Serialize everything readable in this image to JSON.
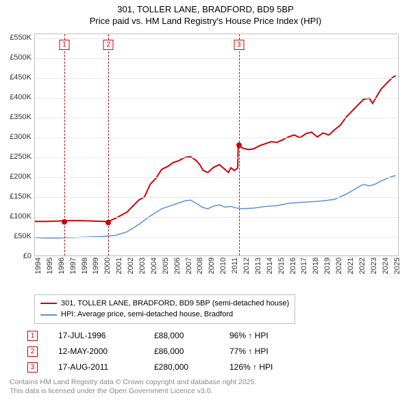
{
  "header": {
    "title_line1": "301, TOLLER LANE, BRADFORD, BD9 5BP",
    "title_line2": "Price paid vs. HM Land Registry's House Price Index (HPI)"
  },
  "chart": {
    "type": "line",
    "background_color": "#ffffff",
    "grid_color": "#e8e8e8",
    "border_color": "#c0c0c0",
    "x_axis": {
      "years": [
        1994,
        1995,
        1996,
        1997,
        1998,
        1999,
        2000,
        2001,
        2002,
        2003,
        2004,
        2005,
        2006,
        2007,
        2008,
        2009,
        2010,
        2011,
        2012,
        2013,
        2014,
        2015,
        2016,
        2017,
        2018,
        2019,
        2020,
        2021,
        2022,
        2023,
        2024,
        2025
      ],
      "min": 1994,
      "max": 2025.5,
      "fontsize": 11
    },
    "y_axis": {
      "ticks": [
        0,
        50000,
        100000,
        150000,
        200000,
        250000,
        300000,
        350000,
        400000,
        450000,
        500000,
        550000
      ],
      "tick_labels": [
        "£0",
        "£50K",
        "£100K",
        "£150K",
        "£200K",
        "£250K",
        "£300K",
        "£350K",
        "£400K",
        "£450K",
        "£500K",
        "£550K"
      ],
      "min": 0,
      "max": 560000,
      "fontsize": 11
    },
    "markers": [
      {
        "num": "1",
        "year": 1996.55
      },
      {
        "num": "2",
        "year": 2000.36
      },
      {
        "num": "3",
        "year": 2011.63
      }
    ],
    "series": {
      "price_paid": {
        "label": "301, TOLLER LANE, BRADFORD, BD9 5BP (semi-detached house)",
        "color": "#cc0000",
        "line_width": 2,
        "sale_dots": [
          {
            "year": 1996.55,
            "value": 88000
          },
          {
            "year": 2000.36,
            "value": 86000
          },
          {
            "year": 2011.63,
            "value": 280000
          }
        ],
        "points": [
          [
            1994,
            86000
          ],
          [
            1995,
            86000
          ],
          [
            1996,
            87000
          ],
          [
            1996.55,
            88000
          ],
          [
            1997,
            88000
          ],
          [
            1998,
            88000
          ],
          [
            1999,
            87000
          ],
          [
            2000,
            86000
          ],
          [
            2000.36,
            86000
          ],
          [
            2001,
            94000
          ],
          [
            2002,
            110000
          ],
          [
            2003,
            140000
          ],
          [
            2003.5,
            148000
          ],
          [
            2004,
            180000
          ],
          [
            2004.5,
            195000
          ],
          [
            2005,
            218000
          ],
          [
            2005.5,
            225000
          ],
          [
            2006,
            235000
          ],
          [
            2006.5,
            240000
          ],
          [
            2007,
            248000
          ],
          [
            2007.5,
            250000
          ],
          [
            2008,
            240000
          ],
          [
            2008.3,
            230000
          ],
          [
            2008.6,
            215000
          ],
          [
            2009,
            210000
          ],
          [
            2009.5,
            223000
          ],
          [
            2010,
            230000
          ],
          [
            2010.4,
            220000
          ],
          [
            2010.8,
            210000
          ],
          [
            2011,
            222000
          ],
          [
            2011.3,
            215000
          ],
          [
            2011.6,
            222000
          ],
          [
            2011.63,
            280000
          ],
          [
            2012,
            272000
          ],
          [
            2012.5,
            268000
          ],
          [
            2013,
            270000
          ],
          [
            2013.5,
            278000
          ],
          [
            2014,
            283000
          ],
          [
            2014.5,
            288000
          ],
          [
            2015,
            286000
          ],
          [
            2015.5,
            293000
          ],
          [
            2016,
            300000
          ],
          [
            2016.5,
            305000
          ],
          [
            2017,
            298000
          ],
          [
            2017.5,
            308000
          ],
          [
            2018,
            312000
          ],
          [
            2018.5,
            300000
          ],
          [
            2019,
            310000
          ],
          [
            2019.5,
            305000
          ],
          [
            2020,
            318000
          ],
          [
            2020.5,
            330000
          ],
          [
            2021,
            350000
          ],
          [
            2021.5,
            365000
          ],
          [
            2022,
            380000
          ],
          [
            2022.5,
            395000
          ],
          [
            2023,
            398000
          ],
          [
            2023.3,
            385000
          ],
          [
            2023.7,
            405000
          ],
          [
            2024,
            420000
          ],
          [
            2024.5,
            435000
          ],
          [
            2025,
            450000
          ],
          [
            2025.3,
            455000
          ]
        ]
      },
      "hpi": {
        "label": "HPI: Average price, semi-detached house, Bradford",
        "color": "#5b8fd6",
        "line_width": 1.5,
        "points": [
          [
            1994,
            45000
          ],
          [
            1995,
            44000
          ],
          [
            1996,
            44000
          ],
          [
            1997,
            45000
          ],
          [
            1998,
            46000
          ],
          [
            1999,
            47000
          ],
          [
            2000,
            48000
          ],
          [
            2001,
            51000
          ],
          [
            2002,
            60000
          ],
          [
            2003,
            78000
          ],
          [
            2004,
            100000
          ],
          [
            2005,
            118000
          ],
          [
            2006,
            128000
          ],
          [
            2007,
            138000
          ],
          [
            2007.5,
            140000
          ],
          [
            2008,
            132000
          ],
          [
            2008.5,
            122000
          ],
          [
            2009,
            118000
          ],
          [
            2009.5,
            125000
          ],
          [
            2010,
            128000
          ],
          [
            2010.5,
            122000
          ],
          [
            2011,
            124000
          ],
          [
            2011.5,
            120000
          ],
          [
            2012,
            118000
          ],
          [
            2013,
            120000
          ],
          [
            2014,
            124000
          ],
          [
            2015,
            126000
          ],
          [
            2016,
            132000
          ],
          [
            2017,
            134000
          ],
          [
            2018,
            136000
          ],
          [
            2019,
            138000
          ],
          [
            2020,
            142000
          ],
          [
            2021,
            155000
          ],
          [
            2022,
            172000
          ],
          [
            2022.5,
            180000
          ],
          [
            2023,
            176000
          ],
          [
            2023.5,
            180000
          ],
          [
            2024,
            188000
          ],
          [
            2025,
            200000
          ],
          [
            2025.3,
            202000
          ]
        ]
      }
    }
  },
  "legend": {
    "border_color": "#c0c0c0"
  },
  "sales_table": {
    "rows": [
      {
        "num": "1",
        "date": "17-JUL-1996",
        "price": "£88,000",
        "hpi": "96% ↑ HPI"
      },
      {
        "num": "2",
        "date": "12-MAY-2000",
        "price": "£86,000",
        "hpi": "77% ↑ HPI"
      },
      {
        "num": "3",
        "date": "17-AUG-2011",
        "price": "£280,000",
        "hpi": "126% ↑ HPI"
      }
    ]
  },
  "footnote": {
    "line1": "Contains HM Land Registry data © Crown copyright and database right 2025.",
    "line2": "This data is licensed under the Open Government Licence v3.0."
  }
}
